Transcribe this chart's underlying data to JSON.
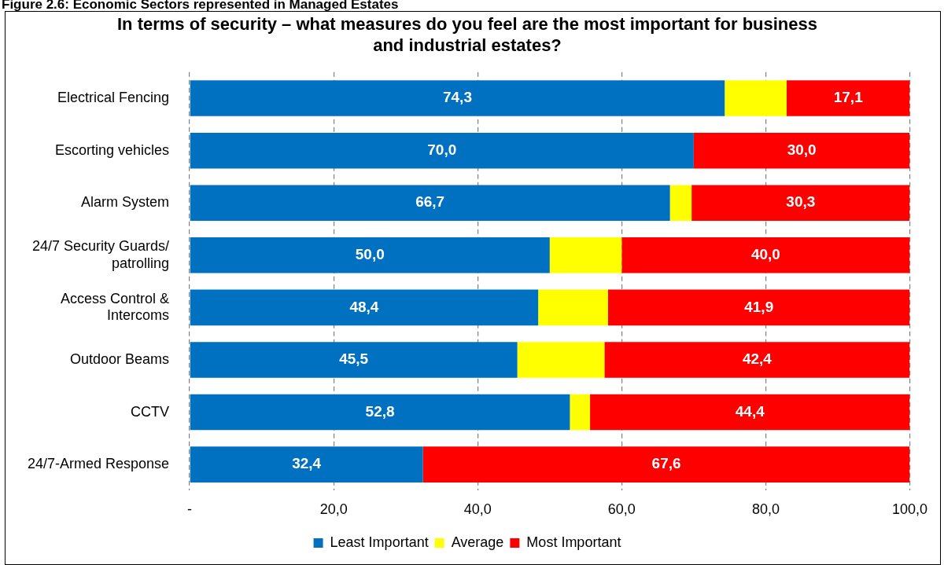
{
  "chart_data": {
    "type": "bar",
    "orientation": "horizontal",
    "stacked": true,
    "title": "In terms of security – what measures do you feel are the most important for business and industrial estates?",
    "annotations": [
      "Figure 2.6: Economic Sectors represented in Managed Estates"
    ],
    "categories": [
      "Electrical Fencing",
      "Escorting vehicles",
      "Alarm System",
      "24/7 Security Guards/ patrolling",
      "Access Control & Intercoms",
      "Outdoor Beams",
      "CCTV",
      "24/7-Armed Response"
    ],
    "series": [
      {
        "name": "Least Important",
        "color": "#0070c0",
        "values": [
          74.3,
          70.0,
          66.7,
          50.0,
          48.4,
          45.5,
          52.8,
          32.4
        ],
        "value_labels": [
          "74,3",
          "70,0",
          "66,7",
          "50,0",
          "48,4",
          "45,5",
          "52,8",
          "32,4"
        ]
      },
      {
        "name": "Average",
        "color": "#ffff00",
        "values": [
          8.6,
          0,
          3.0,
          10.0,
          9.7,
          12.1,
          2.8,
          0
        ]
      },
      {
        "name": "Most Important",
        "color": "#ff0000",
        "values": [
          17.1,
          30.0,
          30.3,
          40.0,
          41.9,
          42.4,
          44.4,
          67.6
        ],
        "value_labels": [
          "17,1",
          "30,0",
          "30,3",
          "40,0",
          "41,9",
          "42,4",
          "44,4",
          "67,6"
        ]
      }
    ],
    "xlim": [
      0,
      100
    ],
    "xticks": [
      {
        "value": 0,
        "label": "-"
      },
      {
        "value": 20,
        "label": "20,0"
      },
      {
        "value": 40,
        "label": "40,0"
      },
      {
        "value": 60,
        "label": "60,0"
      },
      {
        "value": 80,
        "label": "80,0"
      },
      {
        "value": 100,
        "label": "100,0"
      }
    ],
    "grid": "x",
    "legend": "bottom"
  }
}
